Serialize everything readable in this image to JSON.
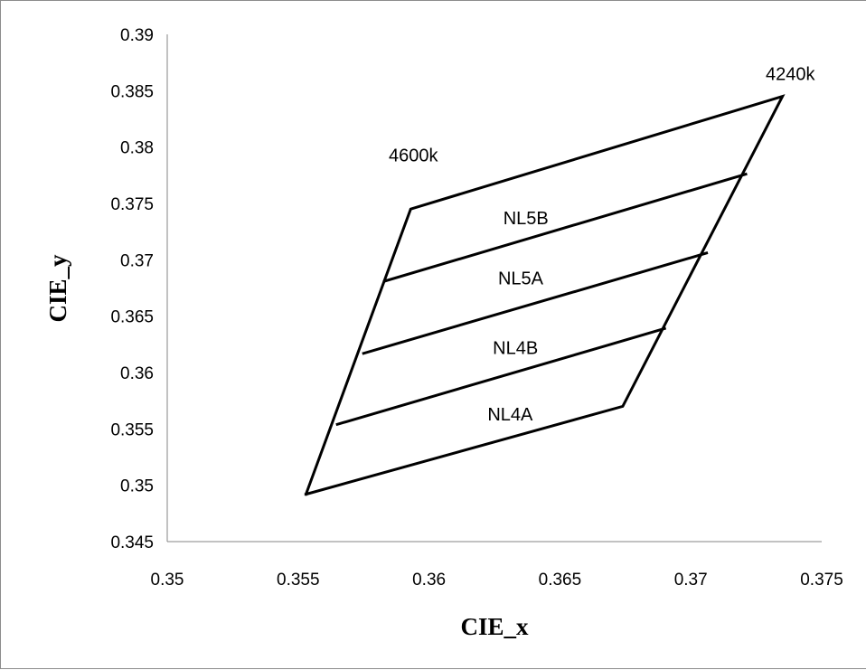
{
  "chart_data": {
    "type": "line",
    "xlabel": "CIE_x",
    "ylabel": "CIE_y",
    "xlim": [
      0.35,
      0.375
    ],
    "ylim": [
      0.345,
      0.39
    ],
    "x_ticks": [
      "0.35",
      "0.355",
      "0.36",
      "0.365",
      "0.37",
      "0.375"
    ],
    "y_ticks": [
      "0.345",
      "0.35",
      "0.355",
      "0.36",
      "0.365",
      "0.37",
      "0.375",
      "0.38",
      "0.385",
      "0.39"
    ],
    "grid": false,
    "legend": "none",
    "line_color": "#000000",
    "series": [
      {
        "points": [
          {
            "x": 0.3553,
            "y": 0.3492
          },
          {
            "x": 0.3593,
            "y": 0.3745
          },
          {
            "x": 0.3735,
            "y": 0.3845
          },
          {
            "x": 0.3674,
            "y": 0.357
          },
          {
            "x": 0.3553,
            "y": 0.3492
          }
        ]
      },
      {
        "points": [
          {
            "x": 0.3565,
            "y": 0.3554
          },
          {
            "x": 0.369,
            "y": 0.3639
          }
        ]
      },
      {
        "points": [
          {
            "x": 0.3575,
            "y": 0.3617
          },
          {
            "x": 0.3706,
            "y": 0.3706
          }
        ]
      },
      {
        "points": [
          {
            "x": 0.3583,
            "y": 0.3681
          },
          {
            "x": 0.3721,
            "y": 0.3776
          }
        ]
      }
    ],
    "annotations": [
      {
        "text": "4240k",
        "x": 0.3738,
        "y": 0.3865
      },
      {
        "text": "4600k",
        "x": 0.3594,
        "y": 0.3793
      },
      {
        "text": "NL5B",
        "x": 0.3637,
        "y": 0.3737
      },
      {
        "text": "NL5A",
        "x": 0.3635,
        "y": 0.3684
      },
      {
        "text": "NL4B",
        "x": 0.3633,
        "y": 0.3622
      },
      {
        "text": "NL4A",
        "x": 0.3631,
        "y": 0.3563
      }
    ]
  }
}
